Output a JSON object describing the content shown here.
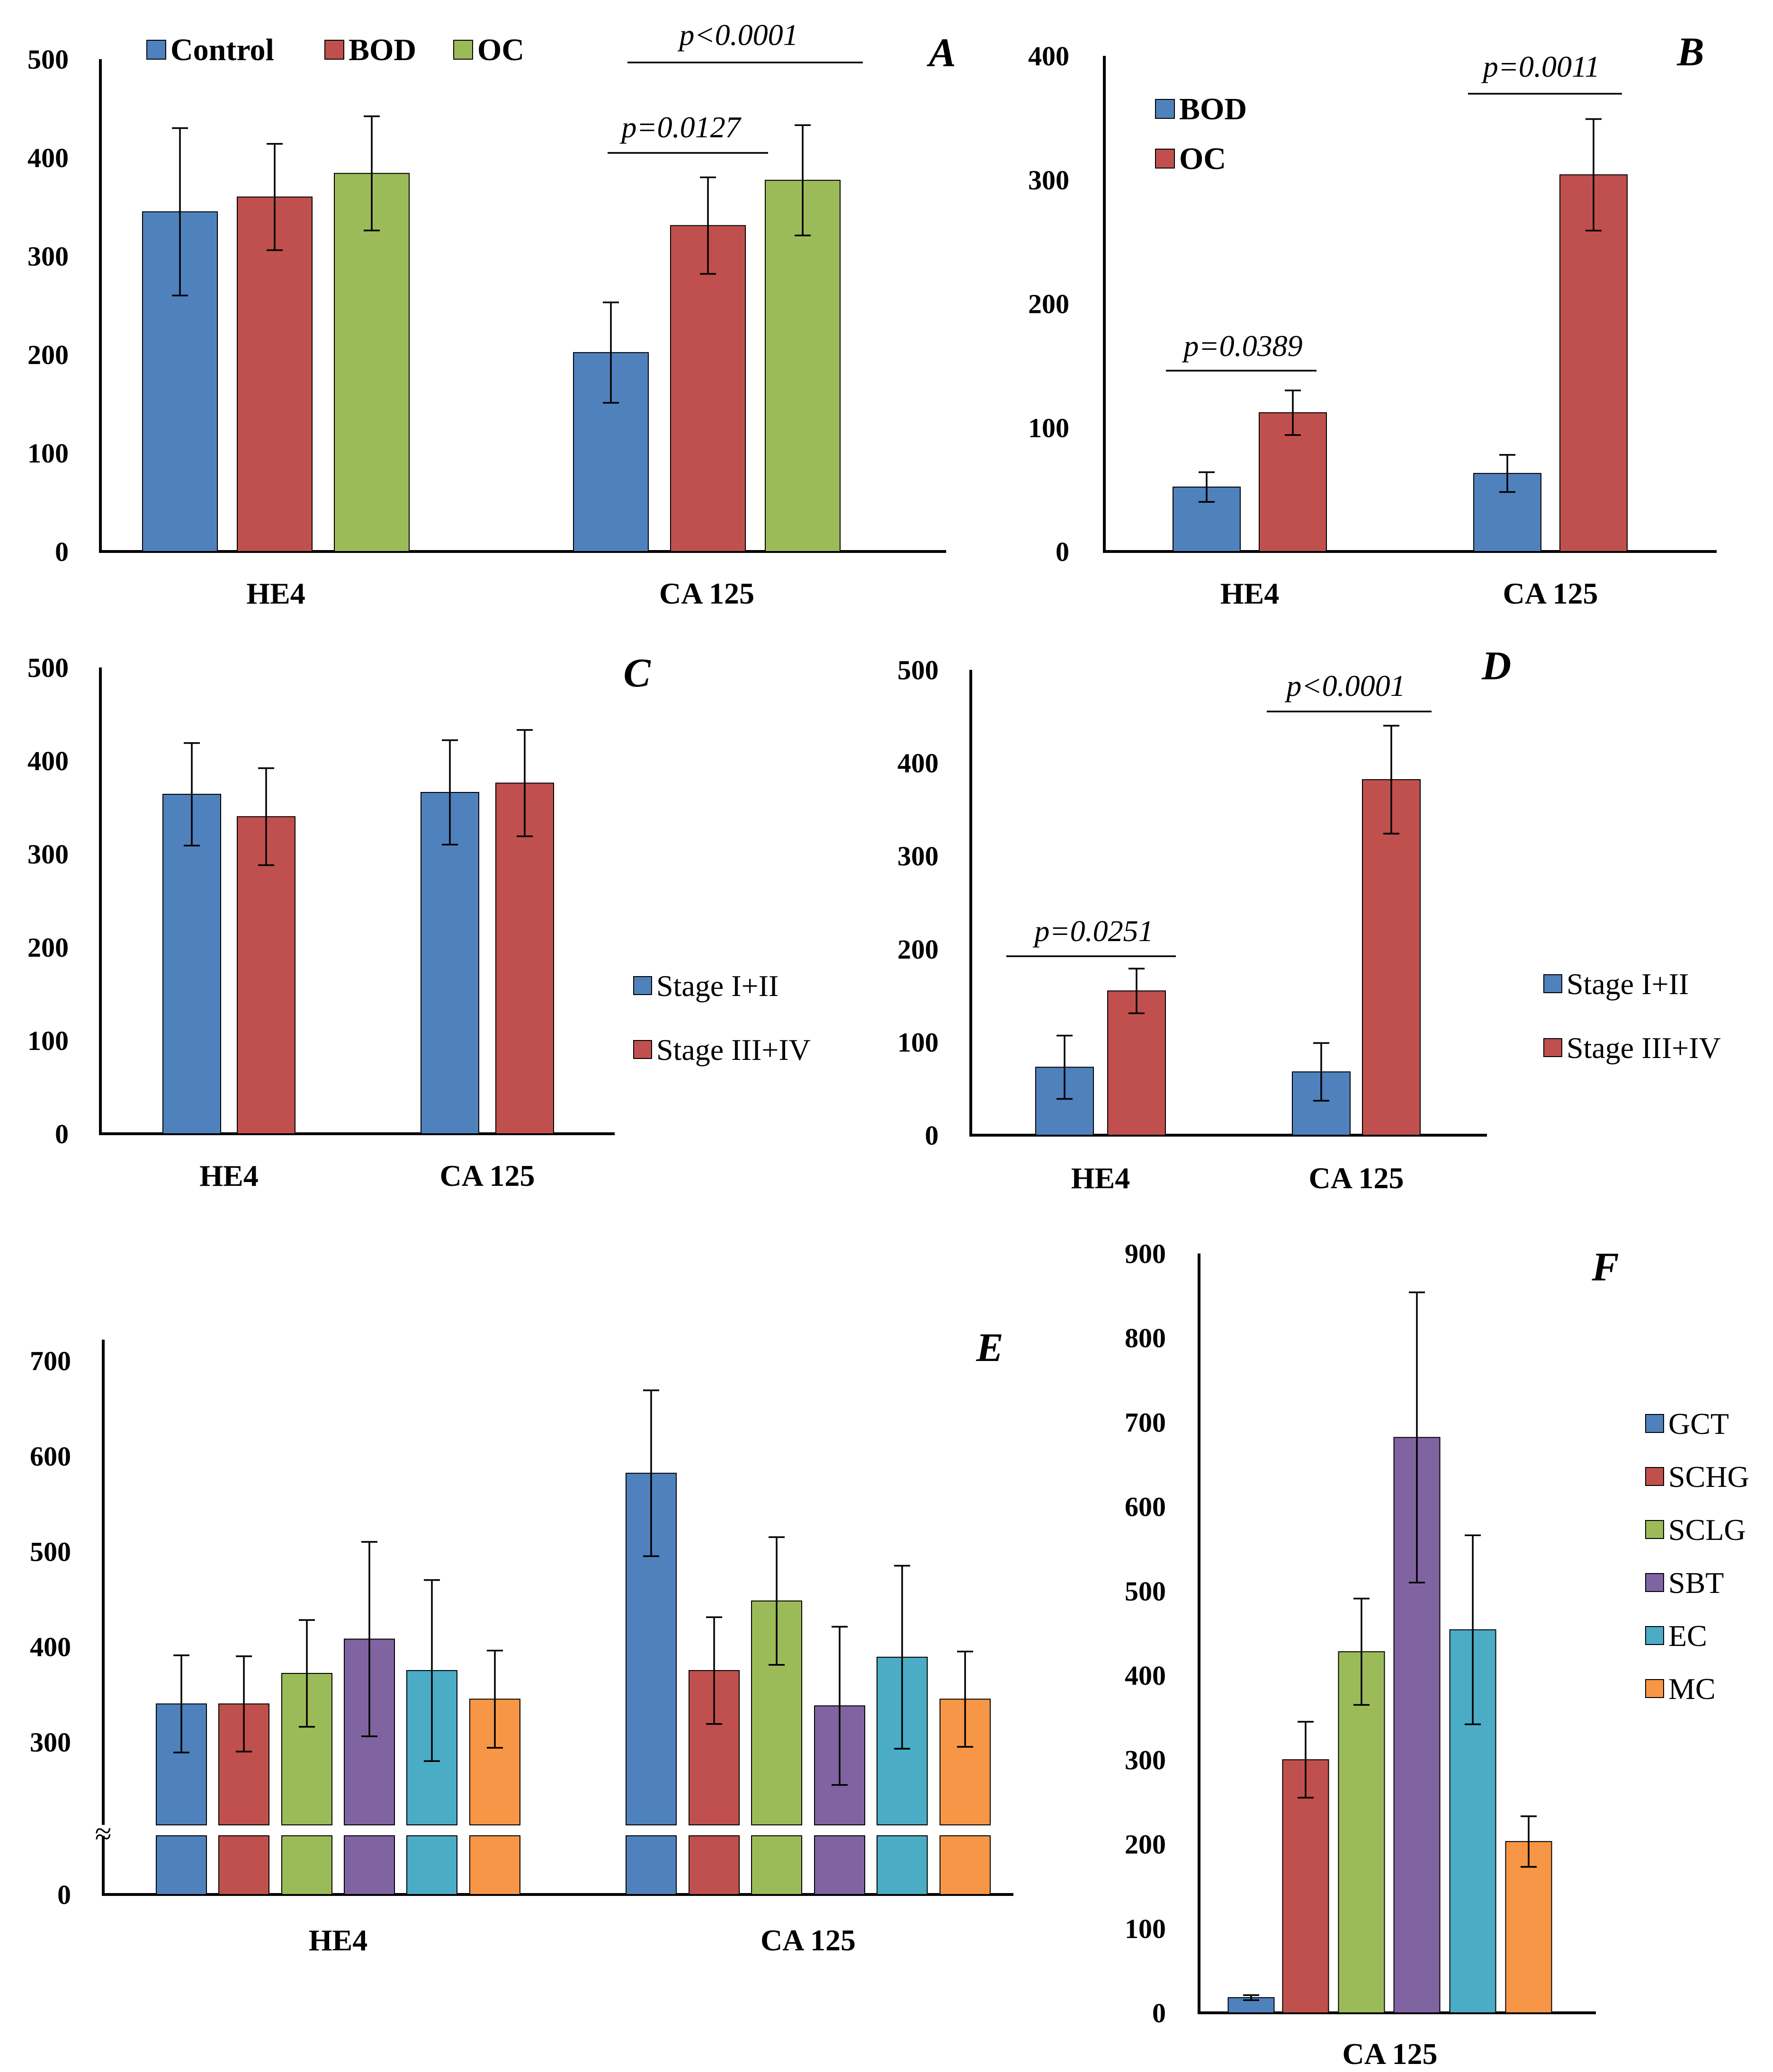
{
  "colors": {
    "blue": "#4f81bd",
    "red": "#c0504d",
    "green": "#9bbb59",
    "purple": "#8064a2",
    "teal": "#4bacc6",
    "orange": "#f79646"
  },
  "chart_data": [
    {
      "panel": "A",
      "type": "bar",
      "categories": [
        "HE4",
        "CA 125"
      ],
      "series": [
        {
          "name": "Control",
          "color": "blue",
          "values": [
            345,
            202
          ],
          "errors": [
            85,
            51
          ]
        },
        {
          "name": "BOD",
          "color": "red",
          "values": [
            360,
            331
          ],
          "errors": [
            54,
            49
          ]
        },
        {
          "name": "OC",
          "color": "green",
          "values": [
            384,
            377
          ],
          "errors": [
            58,
            56
          ]
        }
      ],
      "ylim": [
        0,
        500
      ],
      "yticks": [
        0,
        100,
        200,
        300,
        400,
        500
      ],
      "annotations": [
        "p=0.0127",
        "p<0.0001"
      ]
    },
    {
      "panel": "B",
      "type": "bar",
      "categories": [
        "HE4",
        "CA 125"
      ],
      "series": [
        {
          "name": "BOD",
          "color": "blue",
          "values": [
            52,
            63
          ],
          "errors": [
            12,
            15
          ]
        },
        {
          "name": "OC",
          "color": "red",
          "values": [
            112,
            304
          ],
          "errors": [
            18,
            45
          ]
        }
      ],
      "ylim": [
        0,
        400
      ],
      "yticks": [
        0,
        100,
        200,
        300,
        400
      ],
      "annotations": [
        "p=0.0389",
        "p=0.0011"
      ]
    },
    {
      "panel": "C",
      "type": "bar",
      "categories": [
        "HE4",
        "CA 125"
      ],
      "series": [
        {
          "name": "Stage I+II",
          "color": "blue",
          "values": [
            364,
            366
          ],
          "errors": [
            55,
            56
          ]
        },
        {
          "name": "Stage III+IV",
          "color": "red",
          "values": [
            340,
            376
          ],
          "errors": [
            52,
            57
          ]
        }
      ],
      "ylim": [
        0,
        500
      ],
      "yticks": [
        0,
        100,
        200,
        300,
        400,
        500
      ],
      "annotations": []
    },
    {
      "panel": "D",
      "type": "bar",
      "categories": [
        "HE4",
        "CA 125"
      ],
      "series": [
        {
          "name": "Stage I+II",
          "color": "blue",
          "values": [
            73,
            68
          ],
          "errors": [
            34,
            31
          ]
        },
        {
          "name": "Stage III+IV",
          "color": "red",
          "values": [
            155,
            382
          ],
          "errors": [
            24,
            58
          ]
        }
      ],
      "ylim": [
        0,
        500
      ],
      "yticks": [
        0,
        100,
        200,
        300,
        400,
        500
      ],
      "annotations": [
        "p=0.0251",
        "p<0.0001"
      ]
    },
    {
      "panel": "E",
      "type": "bar",
      "broken_axis": true,
      "categories": [
        "HE4",
        "CA 125"
      ],
      "series": [
        {
          "name": "GCT",
          "color": "blue",
          "values": [
            340,
            582
          ],
          "errors": [
            51,
            87
          ]
        },
        {
          "name": "SCHG",
          "color": "red",
          "values": [
            340,
            375
          ],
          "errors": [
            50,
            56
          ]
        },
        {
          "name": "SCLG",
          "color": "green",
          "values": [
            372,
            448
          ],
          "errors": [
            56,
            67
          ]
        },
        {
          "name": "SBT",
          "color": "purple",
          "values": [
            408,
            338
          ],
          "errors": [
            102,
            83
          ]
        },
        {
          "name": "EC",
          "color": "teal",
          "values": [
            375,
            389
          ],
          "errors": [
            95,
            96
          ]
        },
        {
          "name": "MC",
          "color": "orange",
          "values": [
            345,
            345
          ],
          "errors": [
            51,
            50
          ]
        }
      ],
      "ylim": [
        0,
        700
      ],
      "yticks": [
        0,
        300,
        400,
        500,
        600,
        700
      ],
      "annotations": []
    },
    {
      "panel": "F",
      "type": "bar",
      "categories": [
        "CA 125"
      ],
      "series": [
        {
          "name": "GCT",
          "color": "blue",
          "values": [
            18
          ],
          "errors": [
            3
          ]
        },
        {
          "name": "SCHG",
          "color": "red",
          "values": [
            300
          ],
          "errors": [
            45
          ]
        },
        {
          "name": "SCLG",
          "color": "green",
          "values": [
            428
          ],
          "errors": [
            63
          ]
        },
        {
          "name": "SBT",
          "color": "purple",
          "values": [
            682
          ],
          "errors": [
            172
          ]
        },
        {
          "name": "EC",
          "color": "teal",
          "values": [
            454
          ],
          "errors": [
            112
          ]
        },
        {
          "name": "MC",
          "color": "orange",
          "values": [
            203
          ],
          "errors": [
            30
          ]
        }
      ],
      "ylim": [
        0,
        900
      ],
      "yticks": [
        0,
        100,
        200,
        300,
        400,
        500,
        600,
        700,
        800,
        900
      ],
      "annotations": []
    }
  ],
  "broken_axis_mark": "≈"
}
